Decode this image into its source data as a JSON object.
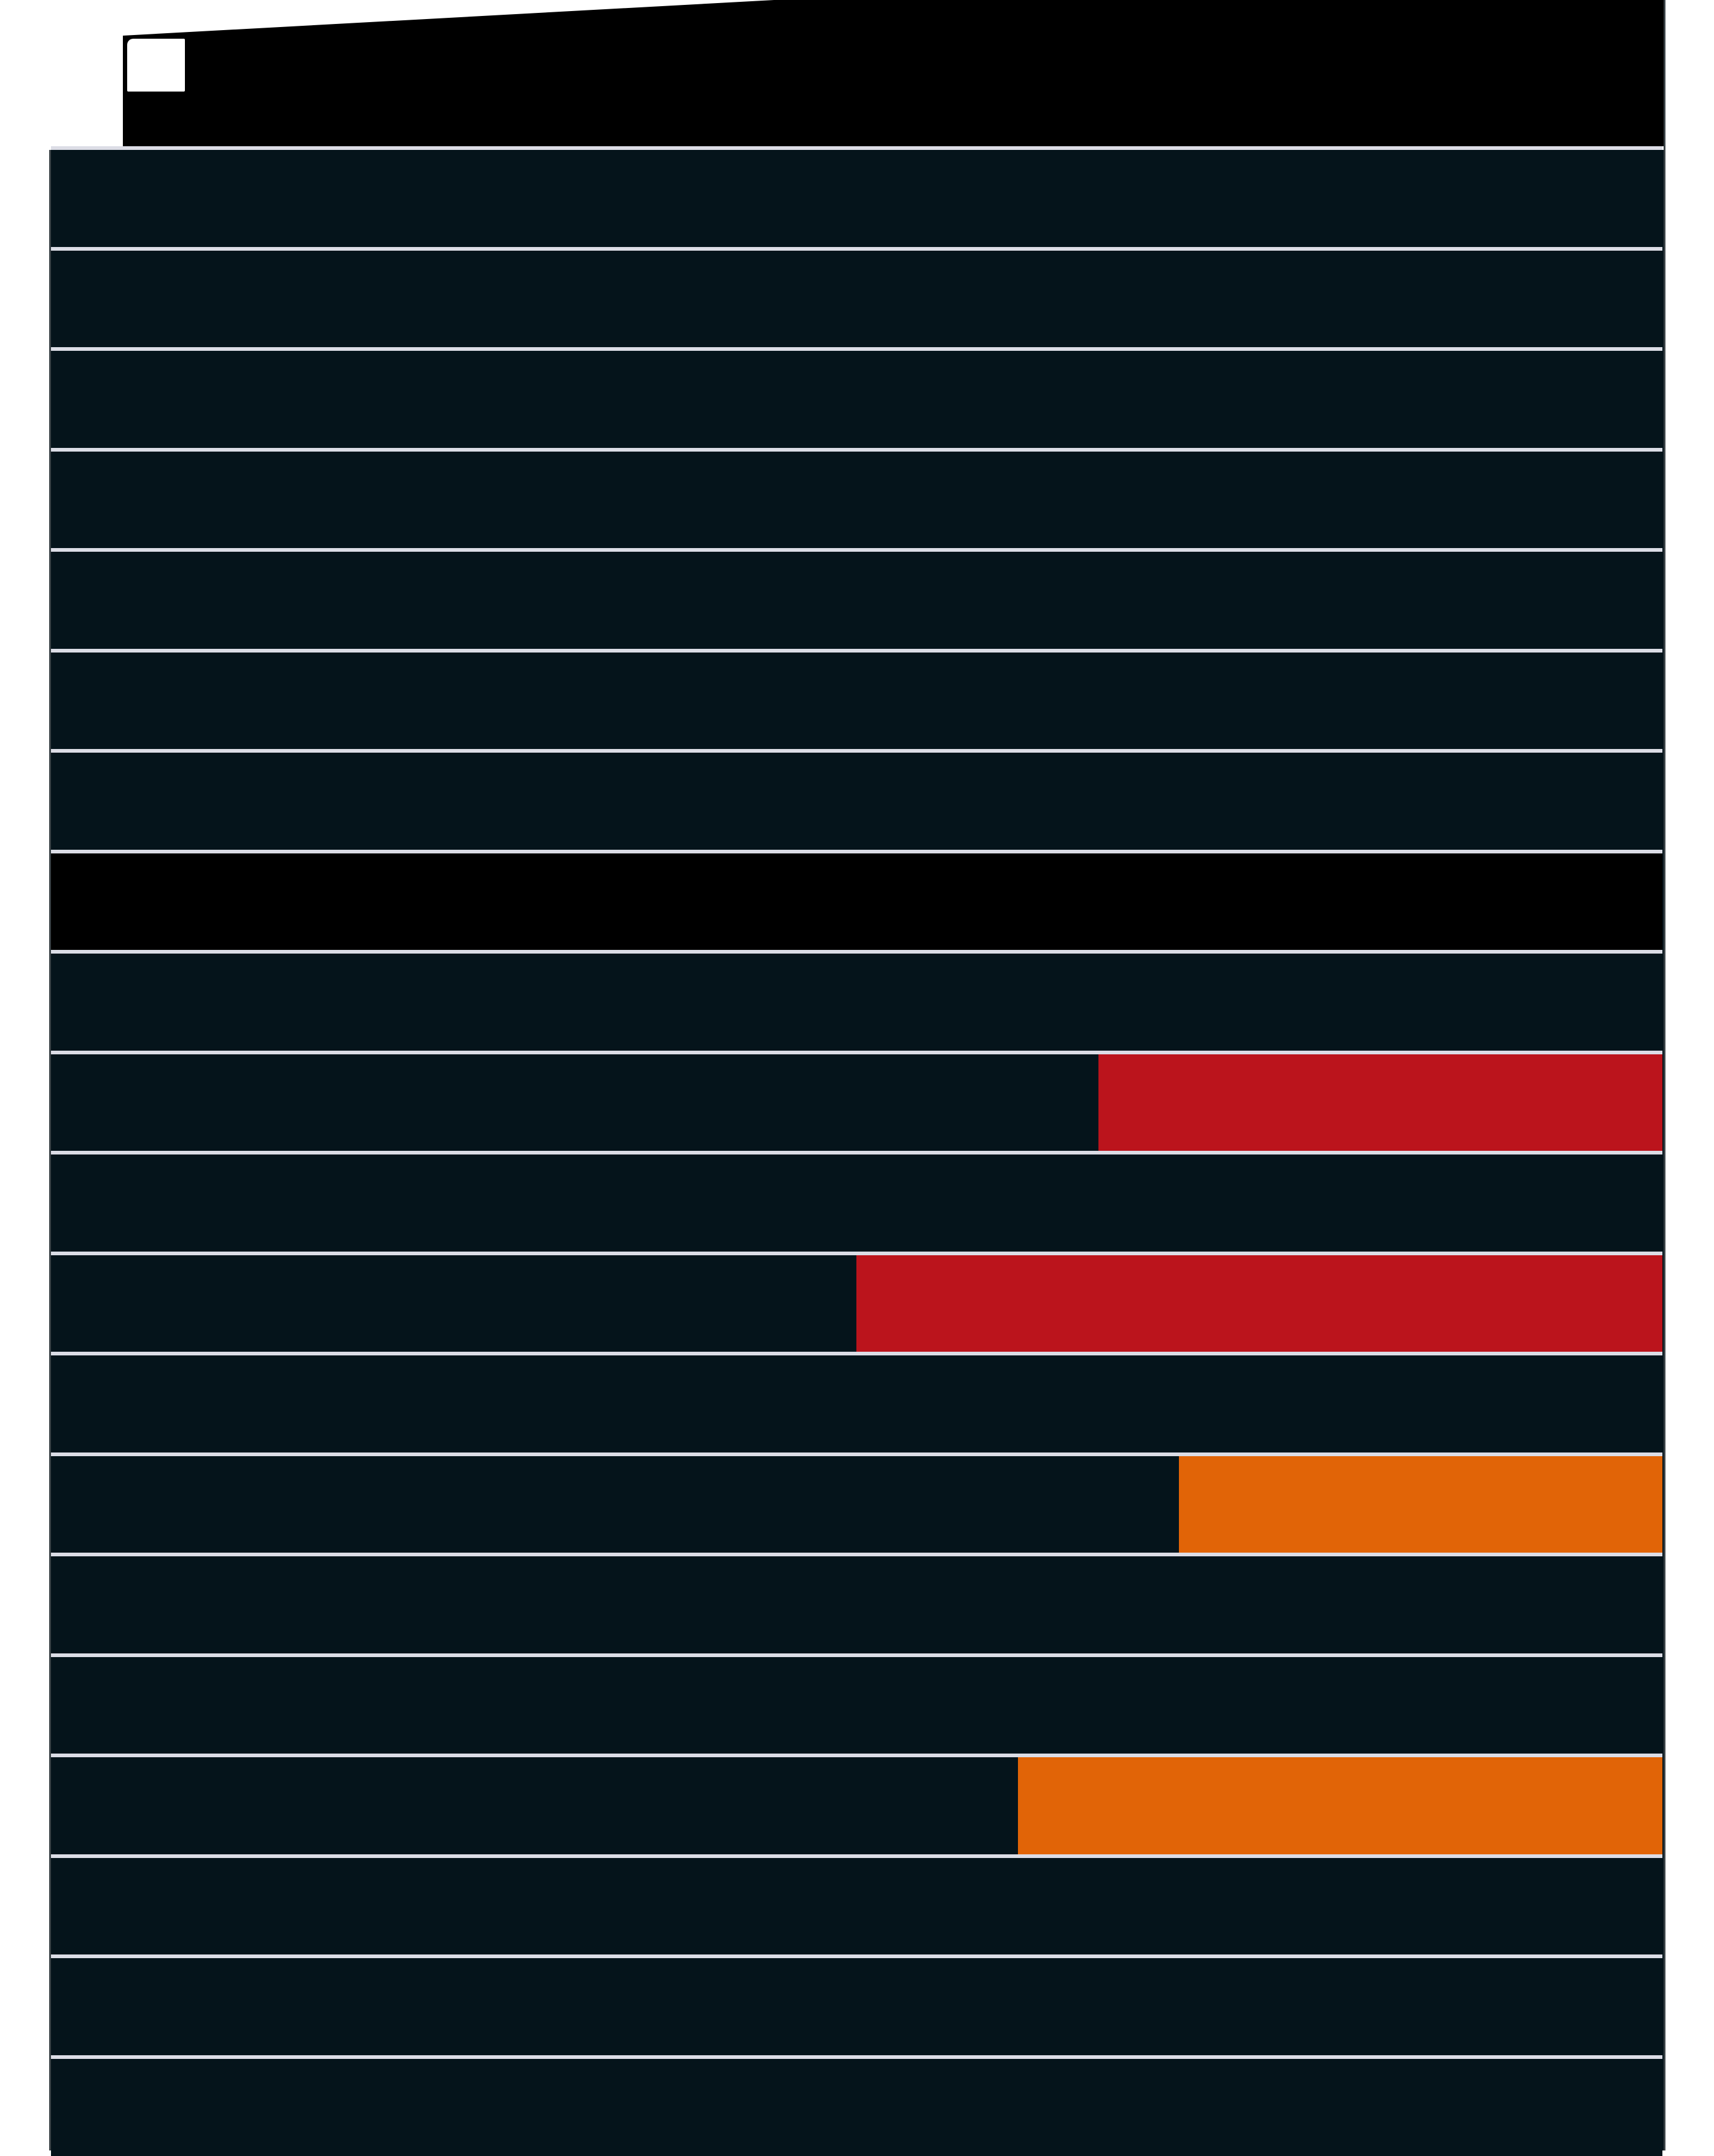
{
  "colors": {
    "background": "#ffffff",
    "panel": "#05141b",
    "header": "#000000",
    "divider": "#dcdde6",
    "red": "#bb141c",
    "orange": "#e16407"
  },
  "rows": [
    {
      "fill": null
    },
    {
      "fill": null
    },
    {
      "fill": null
    },
    {
      "fill": null
    },
    {
      "fill": null
    },
    {
      "fill": null
    },
    {
      "fill": null
    },
    {
      "fill": "black"
    },
    {
      "fill": null
    },
    {
      "fill": "red",
      "level": 0.35
    },
    {
      "fill": null
    },
    {
      "fill": "red",
      "level": 0.5
    },
    {
      "fill": null
    },
    {
      "fill": "orange",
      "level": 0.3
    },
    {
      "fill": null
    },
    {
      "fill": null
    },
    {
      "fill": "orange",
      "level": 0.4
    },
    {
      "fill": null
    },
    {
      "fill": null
    },
    {
      "fill": null
    }
  ]
}
